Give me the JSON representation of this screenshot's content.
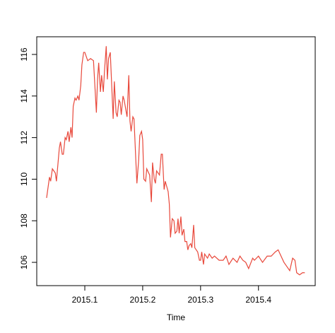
{
  "chart_data": {
    "type": "line",
    "x_label": "Time",
    "color": "#e8483b",
    "x": [
      2015.034,
      2015.039,
      2015.041,
      2015.044,
      2015.049,
      2015.051,
      2015.056,
      2015.058,
      2015.061,
      2015.063,
      2015.066,
      2015.068,
      2015.071,
      2015.073,
      2015.076,
      2015.078,
      2015.08,
      2015.083,
      2015.085,
      2015.088,
      2015.09,
      2015.093,
      2015.095,
      2015.098,
      2015.1,
      2015.105,
      2015.11,
      2015.115,
      2015.12,
      2015.122,
      2015.124,
      2015.127,
      2015.129,
      2015.132,
      2015.134,
      2015.137,
      2015.139,
      2015.141,
      2015.144,
      2015.149,
      2015.151,
      2015.154,
      2015.156,
      2015.159,
      2015.161,
      2015.163,
      2015.166,
      2015.168,
      2015.173,
      2015.176,
      2015.178,
      2015.18,
      2015.183,
      2015.185,
      2015.188,
      2015.19,
      2015.193,
      2015.195,
      2015.198,
      2015.2,
      2015.202,
      2015.205,
      2015.207,
      2015.212,
      2015.215,
      2015.217,
      2015.22,
      2015.222,
      2015.224,
      2015.229,
      2015.232,
      2015.234,
      2015.237,
      2015.239,
      2015.241,
      2015.244,
      2015.246,
      2015.248,
      2015.251,
      2015.254,
      2015.256,
      2015.259,
      2015.261,
      2015.263,
      2015.266,
      2015.268,
      2015.271,
      2015.273,
      2015.276,
      2015.278,
      2015.28,
      2015.283,
      2015.285,
      2015.288,
      2015.29,
      2015.295,
      2015.298,
      2015.3,
      2015.302,
      2015.305,
      2015.307,
      2015.312,
      2015.315,
      2015.32,
      2015.324,
      2015.332,
      2015.339,
      2015.344,
      2015.349,
      2015.356,
      2015.363,
      2015.368,
      2015.373,
      2015.378,
      2015.383,
      2015.39,
      2015.393,
      2015.4,
      2015.407,
      2015.415,
      2015.422,
      2015.429,
      2015.434,
      2015.439,
      2015.444,
      2015.449,
      2015.454,
      2015.459,
      2015.463,
      2015.466,
      2015.471,
      2015.476,
      2015.48
    ],
    "values": [
      109.1,
      110.1,
      109.9,
      110.5,
      110.3,
      109.9,
      111.5,
      111.8,
      111.2,
      111.2,
      112.0,
      111.9,
      112.3,
      111.8,
      112.5,
      112.0,
      113.5,
      113.9,
      113.8,
      114.0,
      113.8,
      114.5,
      115.5,
      116.1,
      116.1,
      115.7,
      115.8,
      115.7,
      113.2,
      114.8,
      115.6,
      114.2,
      115.0,
      114.2,
      115.2,
      116.4,
      114.8,
      115.8,
      116.1,
      112.9,
      114.7,
      113.2,
      113.0,
      113.8,
      113.7,
      113.1,
      114.0,
      113.8,
      113.0,
      115.0,
      112.8,
      112.3,
      113.0,
      112.9,
      111.0,
      109.8,
      110.9,
      112.1,
      112.3,
      111.9,
      110.0,
      109.9,
      110.5,
      110.2,
      108.9,
      110.8,
      110.0,
      109.8,
      110.4,
      110.2,
      111.2,
      111.2,
      109.5,
      109.9,
      109.7,
      109.4,
      108.8,
      107.2,
      108.1,
      108.0,
      107.4,
      107.5,
      108.1,
      107.4,
      108.2,
      107.3,
      107.6,
      107.0,
      107.0,
      106.6,
      106.8,
      106.9,
      106.7,
      107.8,
      106.7,
      106.5,
      106.1,
      106.1,
      106.5,
      105.9,
      106.4,
      106.2,
      106.4,
      106.2,
      106.3,
      106.1,
      106.1,
      106.3,
      105.9,
      106.2,
      106.0,
      106.3,
      106.1,
      106.0,
      105.7,
      106.2,
      106.1,
      106.3,
      106.0,
      106.3,
      106.3,
      106.5,
      106.6,
      106.3,
      106.0,
      105.8,
      105.6,
      106.2,
      106.1,
      105.5,
      105.4,
      105.5,
      105.5
    ],
    "xlim": [
      2015.017,
      2015.498
    ],
    "ylim": [
      104.88,
      116.85
    ],
    "xticks": [
      2015.1,
      2015.2,
      2015.3,
      2015.4
    ],
    "yticks": [
      106,
      108,
      110,
      112,
      114,
      116
    ]
  }
}
